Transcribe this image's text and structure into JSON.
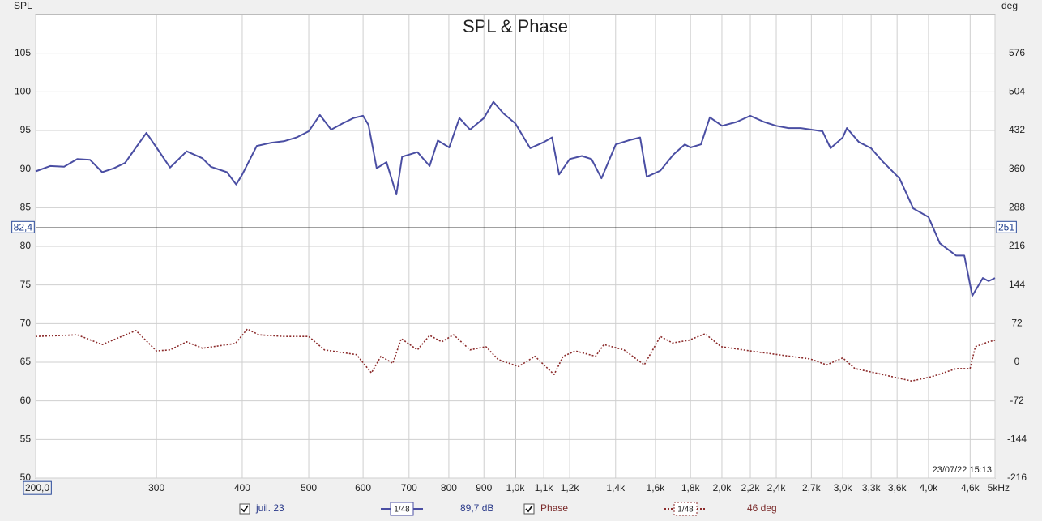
{
  "chart_data": {
    "type": "line",
    "title": "SPL & Phase",
    "y_label": "SPL",
    "y2_label": "deg",
    "log_x": true,
    "grid": true,
    "xlim": [
      200,
      5000
    ],
    "ylim": [
      50,
      110
    ],
    "y2lim": [
      -216,
      648
    ],
    "xticks": [
      {
        "value": 200,
        "label": "200,0"
      },
      300,
      400,
      500,
      600,
      700,
      800,
      900,
      {
        "value": 1000,
        "label": "1,0k"
      },
      {
        "value": 1100,
        "label": "1,1k"
      },
      {
        "value": 1200,
        "label": "1,2k"
      },
      {
        "value": 1400,
        "label": "1,4k"
      },
      {
        "value": 1600,
        "label": "1,6k"
      },
      {
        "value": 1800,
        "label": "1,8k"
      },
      {
        "value": 2000,
        "label": "2,0k"
      },
      {
        "value": 2200,
        "label": "2,2k"
      },
      {
        "value": 2400,
        "label": "2,4k"
      },
      {
        "value": 2700,
        "label": "2,7k"
      },
      {
        "value": 3000,
        "label": "3,0k"
      },
      {
        "value": 3300,
        "label": "3,3k"
      },
      {
        "value": 3600,
        "label": "3,6k"
      },
      {
        "value": 4000,
        "label": "4,0k"
      },
      {
        "value": 4600,
        "label": "4,6k"
      },
      {
        "value": 5000,
        "label": "5kHz"
      }
    ],
    "yticks": [
      50,
      55,
      60,
      65,
      70,
      75,
      80,
      85,
      90,
      95,
      100,
      105
    ],
    "y2ticks": [
      -216,
      -144,
      -72,
      0,
      72,
      144,
      216,
      288,
      360,
      432,
      504,
      576
    ],
    "cursor": {
      "value": 82.4,
      "label": "82,4",
      "y2_value": 251
    },
    "timestamp": "23/07/22 15:13",
    "series": [
      {
        "name": "juil. 23",
        "color": "#4a4ea3",
        "axis": "y",
        "x": [
          200,
          210,
          220,
          230,
          240,
          250,
          260,
          270,
          280,
          290,
          300,
          314,
          332,
          350,
          360,
          380,
          392,
          400,
          420,
          440,
          460,
          480,
          500,
          519,
          539,
          560,
          581,
          600,
          611,
          628,
          649,
          671,
          684,
          720,
          750,
          771,
          801,
          829,
          859,
          900,
          929,
          961,
          1000,
          1051,
          1101,
          1131,
          1158,
          1200,
          1250,
          1291,
          1335,
          1401,
          1460,
          1520,
          1554,
          1627,
          1700,
          1766,
          1800,
          1864,
          1921,
          2001,
          2101,
          2200,
          2304,
          2400,
          2501,
          2605,
          2803,
          2880,
          3000,
          3042,
          3167,
          3299,
          3437,
          3629,
          3801,
          4000,
          4155,
          4390,
          4510,
          4634,
          4800,
          4894,
          5000
        ],
        "values": [
          89.7,
          90.4,
          90.3,
          91.3,
          91.2,
          89.6,
          90.1,
          90.8,
          92.8,
          94.7,
          92.8,
          90.2,
          92.3,
          91.4,
          90.3,
          89.6,
          88.0,
          89.3,
          93.0,
          93.4,
          93.6,
          94.1,
          94.9,
          97.0,
          95.1,
          95.9,
          96.6,
          96.9,
          95.7,
          90.1,
          90.9,
          86.7,
          91.6,
          92.2,
          90.4,
          93.7,
          92.8,
          96.6,
          95.1,
          96.6,
          98.7,
          97.2,
          95.9,
          92.7,
          93.5,
          94.1,
          89.3,
          91.3,
          91.7,
          91.3,
          88.8,
          93.2,
          93.7,
          94.1,
          89.0,
          89.8,
          91.9,
          93.2,
          92.8,
          93.2,
          96.7,
          95.6,
          96.1,
          96.9,
          96.1,
          95.6,
          95.3,
          95.3,
          94.9,
          92.7,
          94.1,
          95.3,
          93.5,
          92.7,
          90.9,
          88.8,
          84.9,
          83.8,
          80.4,
          78.8,
          78.8,
          73.6,
          75.9,
          75.5,
          75.9
        ]
      },
      {
        "name": "Phase",
        "color": "#8b2a2a",
        "axis": "y2",
        "dashed": true,
        "x": [
          200,
          230,
          250,
          280,
          300,
          314,
          332,
          350,
          391,
          407,
          423,
          460,
          500,
          527,
          587,
          617,
          637,
          663,
          682,
          720,
          750,
          781,
          813,
          859,
          906,
          944,
          1011,
          1068,
          1139,
          1174,
          1224,
          1309,
          1346,
          1440,
          1541,
          1627,
          1695,
          1789,
          1890,
          1995,
          2200,
          2414,
          2690,
          2842,
          3000,
          3126,
          3346,
          3629,
          3780,
          4045,
          4390,
          4598,
          4682,
          4894,
          5000
        ],
        "values": [
          48,
          51,
          33,
          59,
          21,
          23,
          38,
          26,
          35,
          62,
          51,
          48,
          48,
          23,
          14,
          -20,
          11,
          -2,
          44,
          23,
          50,
          38,
          51,
          23,
          29,
          5,
          -8,
          11,
          -23,
          11,
          21,
          11,
          33,
          23,
          -5,
          48,
          36,
          41,
          53,
          29,
          21,
          14,
          6,
          -5,
          8,
          -12,
          -20,
          -30,
          -35,
          -27,
          -12,
          -12,
          29,
          38,
          41
        ]
      }
    ],
    "legend": [
      {
        "checked": true,
        "label": "juil. 23",
        "smoothing": "1/48",
        "reading": "89,7 dB"
      },
      {
        "checked": true,
        "label": "Phase",
        "smoothing": "1/48",
        "reading": "46 deg"
      }
    ]
  }
}
